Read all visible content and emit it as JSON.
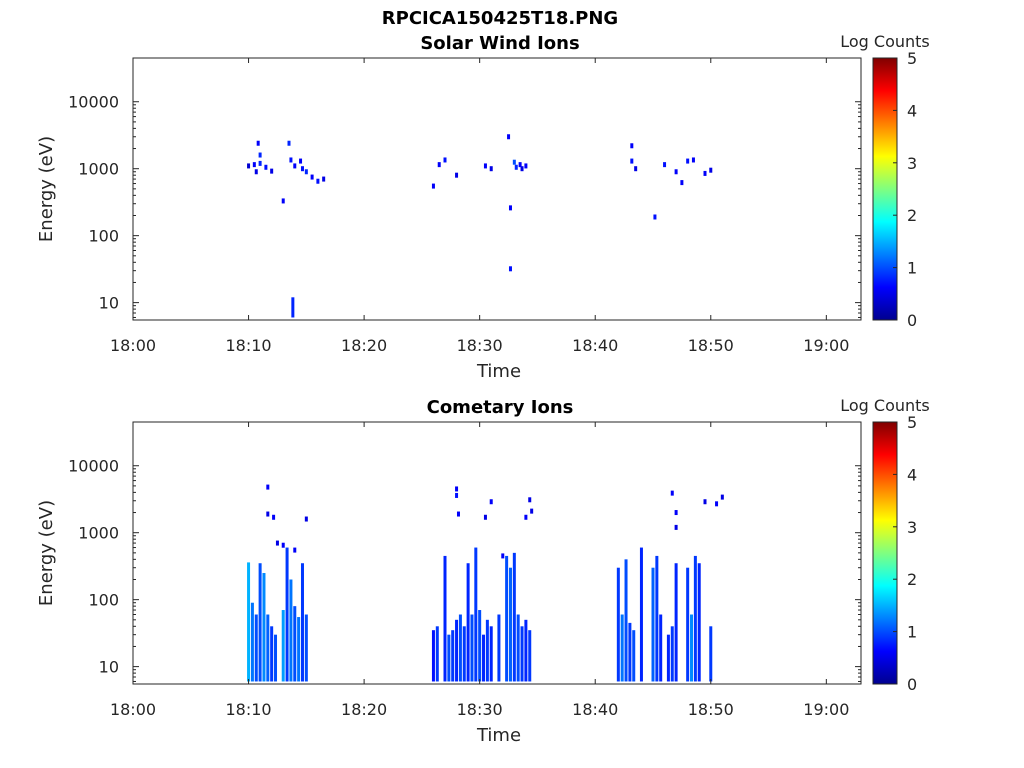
{
  "figure": {
    "title": "RPCICA150425T18.PNG",
    "colormap": "jet",
    "colorbar": {
      "label": "Log Counts",
      "ticks": [
        "0",
        "1",
        "2",
        "3",
        "4",
        "5"
      ],
      "range": [
        0,
        5
      ]
    }
  },
  "chart_data": [
    {
      "type": "heatmap",
      "title": "Solar Wind Ions",
      "xlabel": "Time",
      "ylabel": "Energy (eV)",
      "y_scale": "log",
      "x_range": [
        "18:00",
        "19:03"
      ],
      "y_range": [
        5.5,
        45000
      ],
      "x_ticks": [
        "18:00",
        "18:10",
        "18:20",
        "18:30",
        "18:40",
        "18:50",
        "19:00"
      ],
      "y_ticks": [
        "10",
        "100",
        "1000",
        "10000"
      ],
      "color_range": [
        0,
        5
      ],
      "points": [
        [
          "18:10:00",
          1100,
          0.4
        ],
        [
          "18:10:30",
          1150,
          0.6
        ],
        [
          "18:10:40",
          900,
          0.5
        ],
        [
          "18:10:50",
          2400,
          0.6
        ],
        [
          "18:11:00",
          1600,
          0.8
        ],
        [
          "18:11:00",
          1200,
          0.8
        ],
        [
          "18:11:30",
          1050,
          0.7
        ],
        [
          "18:12:00",
          920,
          0.5
        ],
        [
          "18:13:00",
          330,
          0.6
        ],
        [
          "18:13:30",
          2400,
          0.8
        ],
        [
          "18:13:40",
          1350,
          0.7
        ],
        [
          "18:14:00",
          1100,
          0.6
        ],
        [
          "18:14:30",
          1300,
          0.6
        ],
        [
          "18:14:40",
          1000,
          0.7
        ],
        [
          "18:15:00",
          900,
          0.8
        ],
        [
          "18:15:30",
          750,
          0.6
        ],
        [
          "18:16:00",
          650,
          0.7
        ],
        [
          "18:16:30",
          700,
          0.5
        ],
        [
          "18:26:00",
          550,
          0.6
        ],
        [
          "18:26:30",
          1150,
          0.6
        ],
        [
          "18:27:00",
          1350,
          0.7
        ],
        [
          "18:28:00",
          800,
          0.5
        ],
        [
          "18:30:30",
          1100,
          0.6
        ],
        [
          "18:31:00",
          1000,
          0.5
        ],
        [
          "18:32:30",
          3000,
          0.6
        ],
        [
          "18:32:40",
          260,
          0.6
        ],
        [
          "18:32:40",
          32,
          0.7
        ],
        [
          "18:33:00",
          1250,
          1.0
        ],
        [
          "18:33:10",
          1050,
          0.8
        ],
        [
          "18:33:30",
          1150,
          0.6
        ],
        [
          "18:33:40",
          1000,
          0.5
        ],
        [
          "18:34:00",
          1100,
          0.6
        ],
        [
          "18:43:10",
          2200,
          0.6
        ],
        [
          "18:43:10",
          1300,
          0.7
        ],
        [
          "18:43:30",
          1000,
          0.5
        ],
        [
          "18:45:10",
          190,
          0.7
        ],
        [
          "18:46:00",
          1150,
          0.7
        ],
        [
          "18:47:00",
          900,
          0.6
        ],
        [
          "18:47:30",
          620,
          0.6
        ],
        [
          "18:48:00",
          1300,
          0.7
        ],
        [
          "18:48:30",
          1350,
          0.6
        ],
        [
          "18:49:30",
          850,
          0.6
        ],
        [
          "18:50:00",
          950,
          0.5
        ]
      ],
      "columns": [
        [
          "18:13:50",
          6,
          12,
          0.8
        ]
      ]
    },
    {
      "type": "heatmap",
      "title": "Cometary Ions",
      "xlabel": "Time",
      "ylabel": "Energy (eV)",
      "y_scale": "log",
      "x_range": [
        "18:00",
        "19:03"
      ],
      "y_range": [
        5.5,
        45000
      ],
      "x_ticks": [
        "18:00",
        "18:10",
        "18:20",
        "18:30",
        "18:40",
        "18:50",
        "19:00"
      ],
      "y_ticks": [
        "10",
        "100",
        "1000",
        "10000"
      ],
      "color_range": [
        0,
        5
      ],
      "points": [
        [
          "18:11:40",
          4800,
          0.6
        ],
        [
          "18:11:40",
          1900,
          0.5
        ],
        [
          "18:12:10",
          1700,
          0.6
        ],
        [
          "18:12:30",
          700,
          0.5
        ],
        [
          "18:13:00",
          650,
          0.6
        ],
        [
          "18:14:00",
          550,
          0.6
        ],
        [
          "18:15:00",
          1600,
          0.5
        ],
        [
          "18:28:00",
          4500,
          0.6
        ],
        [
          "18:28:00",
          3600,
          0.7
        ],
        [
          "18:28:10",
          1900,
          0.6
        ],
        [
          "18:30:30",
          1700,
          0.5
        ],
        [
          "18:31:00",
          2900,
          0.6
        ],
        [
          "18:32:00",
          450,
          0.6
        ],
        [
          "18:34:00",
          1700,
          0.6
        ],
        [
          "18:34:20",
          3100,
          0.5
        ],
        [
          "18:34:30",
          2100,
          0.5
        ],
        [
          "18:46:40",
          3900,
          0.6
        ],
        [
          "18:47:00",
          2000,
          0.6
        ],
        [
          "18:47:00",
          1200,
          0.5
        ],
        [
          "18:49:30",
          2900,
          0.5
        ],
        [
          "18:50:30",
          2700,
          0.6
        ],
        [
          "18:51:00",
          3400,
          0.5
        ]
      ],
      "columns": [
        [
          "18:10:00",
          6,
          360,
          1.5
        ],
        [
          "18:10:20",
          6,
          90,
          1.2
        ],
        [
          "18:10:40",
          6,
          60,
          1.0
        ],
        [
          "18:11:00",
          6,
          350,
          1.0
        ],
        [
          "18:11:20",
          6,
          250,
          1.3
        ],
        [
          "18:11:40",
          6,
          60,
          1.1
        ],
        [
          "18:12:00",
          6,
          40,
          0.9
        ],
        [
          "18:12:20",
          6,
          30,
          1.0
        ],
        [
          "18:13:00",
          6,
          70,
          1.4
        ],
        [
          "18:13:20",
          6,
          600,
          0.9
        ],
        [
          "18:13:40",
          6,
          200,
          1.2
        ],
        [
          "18:14:00",
          6,
          80,
          1.0
        ],
        [
          "18:14:20",
          6,
          55,
          1.2
        ],
        [
          "18:14:40",
          6,
          350,
          0.9
        ],
        [
          "18:15:00",
          6,
          60,
          1.0
        ],
        [
          "18:26:00",
          6,
          35,
          0.7
        ],
        [
          "18:26:20",
          6,
          40,
          0.9
        ],
        [
          "18:27:00",
          6,
          450,
          0.8
        ],
        [
          "18:27:20",
          6,
          30,
          1.0
        ],
        [
          "18:27:40",
          6,
          35,
          0.9
        ],
        [
          "18:28:00",
          6,
          50,
          0.8
        ],
        [
          "18:28:20",
          6,
          60,
          1.0
        ],
        [
          "18:28:40",
          6,
          40,
          0.9
        ],
        [
          "18:29:00",
          6,
          350,
          0.8
        ],
        [
          "18:29:20",
          6,
          60,
          1.0
        ],
        [
          "18:29:40",
          6,
          600,
          0.9
        ],
        [
          "18:30:00",
          6,
          70,
          1.0
        ],
        [
          "18:30:20",
          6,
          30,
          0.8
        ],
        [
          "18:30:40",
          6,
          50,
          0.9
        ],
        [
          "18:31:00",
          6,
          40,
          0.8
        ],
        [
          "18:31:40",
          6,
          60,
          0.9
        ],
        [
          "18:32:20",
          6,
          450,
          1.0
        ],
        [
          "18:32:40",
          6,
          300,
          1.1
        ],
        [
          "18:33:00",
          6,
          500,
          0.9
        ],
        [
          "18:33:20",
          6,
          60,
          1.0
        ],
        [
          "18:33:40",
          6,
          40,
          0.9
        ],
        [
          "18:34:00",
          6,
          50,
          0.8
        ],
        [
          "18:34:20",
          6,
          35,
          0.9
        ],
        [
          "18:42:00",
          6,
          300,
          0.9
        ],
        [
          "18:42:20",
          6,
          60,
          1.2
        ],
        [
          "18:42:40",
          6,
          400,
          1.0
        ],
        [
          "18:43:00",
          6,
          45,
          0.9
        ],
        [
          "18:43:20",
          6,
          35,
          1.0
        ],
        [
          "18:44:00",
          6,
          600,
          0.8
        ],
        [
          "18:45:00",
          6,
          300,
          1.1
        ],
        [
          "18:45:20",
          6,
          450,
          0.9
        ],
        [
          "18:45:40",
          6,
          60,
          0.8
        ],
        [
          "18:46:20",
          6,
          30,
          0.8
        ],
        [
          "18:46:40",
          6,
          40,
          0.9
        ],
        [
          "18:47:00",
          6,
          350,
          0.8
        ],
        [
          "18:48:00",
          6,
          300,
          0.9
        ],
        [
          "18:48:20",
          6,
          60,
          1.3
        ],
        [
          "18:48:40",
          6,
          450,
          0.9
        ],
        [
          "18:49:00",
          6,
          350,
          0.8
        ],
        [
          "18:50:00",
          6,
          40,
          0.9
        ]
      ]
    }
  ]
}
